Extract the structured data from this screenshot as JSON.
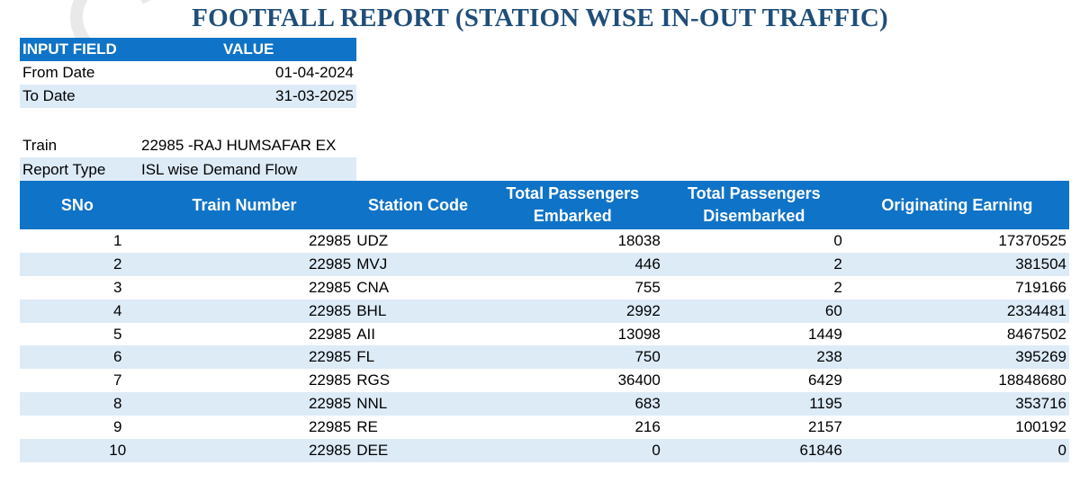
{
  "report": {
    "title": "FOOTFALL REPORT (STATION WISE IN-OUT TRAFFIC)"
  },
  "input_table": {
    "header_field": "INPUT FIELD",
    "header_value": "VALUE",
    "rows": [
      {
        "label": "From Date",
        "value": "01-04-2024"
      },
      {
        "label": "To Date",
        "value": "31-03-2025"
      }
    ]
  },
  "meta": {
    "train_label": "Train",
    "train_value": "22985 -RAJ HUMSAFAR EX",
    "report_type_label": "Report Type",
    "report_type_value": "ISL wise Demand Flow"
  },
  "traffic_table": {
    "headers": {
      "sno": "SNo",
      "train_number": "Train Number",
      "station_code": "Station Code",
      "embarked_line1": "Total Passengers",
      "embarked_line2": "Embarked",
      "disembarked_line1": "Total Passengers",
      "disembarked_line2": "Disembarked",
      "earning": "Originating Earning"
    },
    "rows": [
      {
        "sno": "1",
        "train": "22985",
        "station": "UDZ",
        "embarked": "18038",
        "disembarked": "0",
        "earning": "17370525"
      },
      {
        "sno": "2",
        "train": "22985",
        "station": "MVJ",
        "embarked": "446",
        "disembarked": "2",
        "earning": "381504"
      },
      {
        "sno": "3",
        "train": "22985",
        "station": "CNA",
        "embarked": "755",
        "disembarked": "2",
        "earning": "719166"
      },
      {
        "sno": "4",
        "train": "22985",
        "station": "BHL",
        "embarked": "2992",
        "disembarked": "60",
        "earning": "2334481"
      },
      {
        "sno": "5",
        "train": "22985",
        "station": "AII",
        "embarked": "13098",
        "disembarked": "1449",
        "earning": "8467502"
      },
      {
        "sno": "6",
        "train": "22985",
        "station": "FL",
        "embarked": "750",
        "disembarked": "238",
        "earning": "395269"
      },
      {
        "sno": "7",
        "train": "22985",
        "station": "RGS",
        "embarked": "36400",
        "disembarked": "6429",
        "earning": "18848680"
      },
      {
        "sno": "8",
        "train": "22985",
        "station": "NNL",
        "embarked": "683",
        "disembarked": "1195",
        "earning": "353716"
      },
      {
        "sno": "9",
        "train": "22985",
        "station": "RE",
        "embarked": "216",
        "disembarked": "2157",
        "earning": "100192"
      },
      {
        "sno": "10",
        "train": "22985",
        "station": "DEE",
        "embarked": "0",
        "disembarked": "61846",
        "earning": "0"
      }
    ]
  },
  "colors": {
    "title": "#1f4e79",
    "header_bg": "#0f73c7",
    "alt_row_bg": "#ddebf7"
  }
}
